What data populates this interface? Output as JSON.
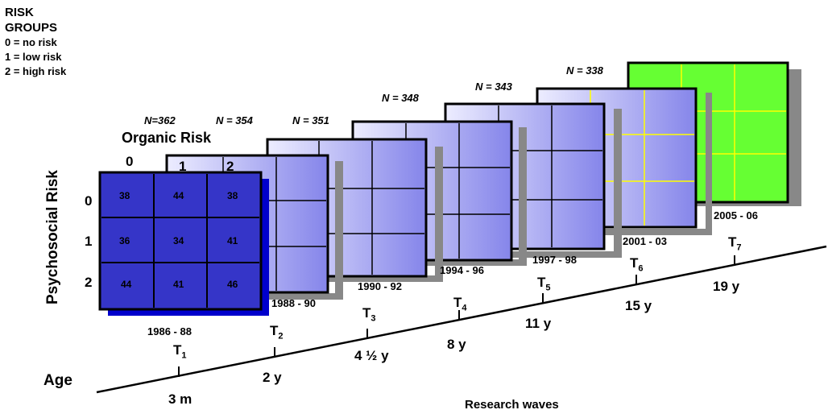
{
  "legend": {
    "title_line1": "RISK",
    "title_line2": "GROUPS",
    "items": [
      "0 = no risk",
      "1 = low risk",
      "2 = high risk"
    ]
  },
  "organic_risk": {
    "title": "Organic Risk",
    "columns": [
      "0",
      "1",
      "2"
    ]
  },
  "psychosocial_risk": {
    "title": "Psychosocial Risk",
    "rows": [
      "0",
      "1",
      "2"
    ]
  },
  "first_wave_values": [
    [
      "38",
      "44",
      "38"
    ],
    [
      "36",
      "34",
      "41"
    ],
    [
      "44",
      "41",
      "46"
    ]
  ],
  "waves": [
    {
      "n": "N=362",
      "period": "1986 - 88",
      "t_base": "T",
      "t_sub": "1",
      "age": "3 m",
      "fill": "#3535c8"
    },
    {
      "n": "N = 354",
      "period": "1988 - 90",
      "t_base": "T",
      "t_sub": "2",
      "age": "2 y",
      "fill": "gradient"
    },
    {
      "n": "N = 351",
      "period": "1990 - 92",
      "t_base": "T",
      "t_sub": "3",
      "age": "4 ½ y",
      "fill": "gradient"
    },
    {
      "n": "N = 348",
      "period": "1994 - 96",
      "t_base": "T",
      "t_sub": "4",
      "age": "8 y",
      "fill": "gradient"
    },
    {
      "n": "N = 343",
      "period": "1997 - 98",
      "t_base": "T",
      "t_sub": "5",
      "age": "11 y",
      "fill": "gradient"
    },
    {
      "n": "N = 338",
      "period": "2001 - 03",
      "t_base": "T",
      "t_sub": "6",
      "age": "15 y",
      "fill": "gradient"
    },
    {
      "n": "",
      "period": "2005 - 06",
      "t_base": "T",
      "t_sub": "7",
      "age": "19 y",
      "fill": "#66ff33"
    }
  ],
  "axis": {
    "age_label": "Age",
    "waves_label": "Research waves"
  },
  "colors": {
    "first_wave": "#3535c8",
    "gradient_light": "#e8e8ff",
    "gradient_dark": "#8888ee",
    "last_wave": "#66ff33",
    "last_wave_grid": "#ffff00",
    "shadow": "#888888"
  }
}
